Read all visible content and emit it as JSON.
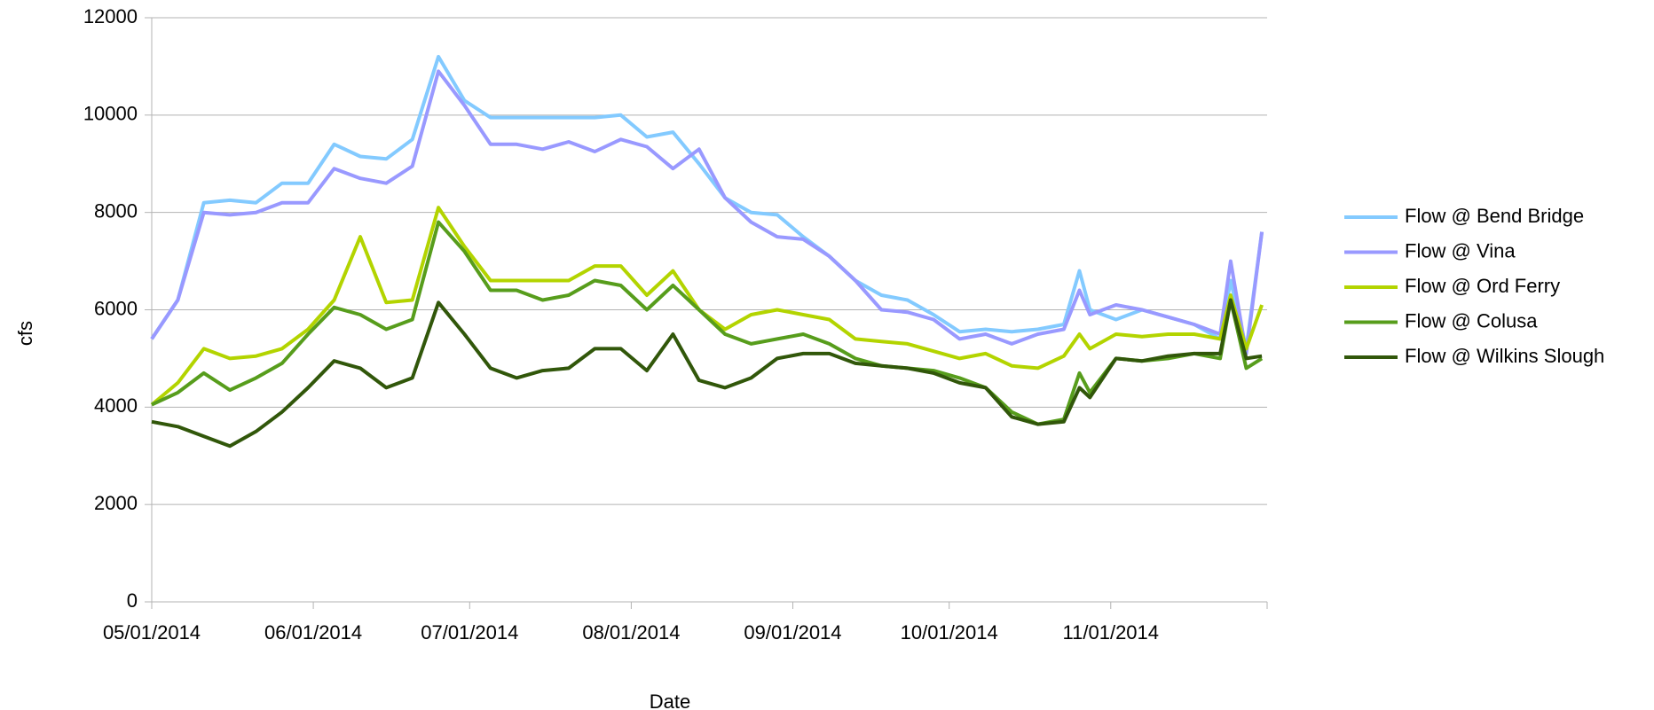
{
  "chart_data": {
    "type": "line",
    "x_label": "Date",
    "y_label": "cfs",
    "x": [
      "2014-05-01",
      "2014-05-06",
      "2014-05-11",
      "2014-05-16",
      "2014-05-21",
      "2014-05-26",
      "2014-05-31",
      "2014-06-05",
      "2014-06-10",
      "2014-06-15",
      "2014-06-20",
      "2014-06-25",
      "2014-06-30",
      "2014-07-05",
      "2014-07-10",
      "2014-07-15",
      "2014-07-20",
      "2014-07-25",
      "2014-07-30",
      "2014-08-04",
      "2014-08-09",
      "2014-08-14",
      "2014-08-19",
      "2014-08-24",
      "2014-08-29",
      "2014-09-03",
      "2014-09-08",
      "2014-09-13",
      "2014-09-18",
      "2014-09-23",
      "2014-09-28",
      "2014-10-03",
      "2014-10-08",
      "2014-10-13",
      "2014-10-18",
      "2014-10-23",
      "2014-10-26",
      "2014-10-28",
      "2014-11-02",
      "2014-11-07",
      "2014-11-12",
      "2014-11-17",
      "2014-11-22",
      "2014-11-24",
      "2014-11-27",
      "2014-11-30"
    ],
    "xlim": [
      "2014-05-01",
      "2014-12-01"
    ],
    "xticks": [
      {
        "value": "2014-05-01",
        "label": "05/01/2014"
      },
      {
        "value": "2014-06-01",
        "label": "06/01/2014"
      },
      {
        "value": "2014-07-01",
        "label": "07/01/2014"
      },
      {
        "value": "2014-08-01",
        "label": "08/01/2014"
      },
      {
        "value": "2014-09-01",
        "label": "09/01/2014"
      },
      {
        "value": "2014-10-01",
        "label": "10/01/2014"
      },
      {
        "value": "2014-11-01",
        "label": "11/01/2014"
      }
    ],
    "ylim": [
      0,
      12000
    ],
    "yticks": [
      0,
      2000,
      4000,
      6000,
      8000,
      10000,
      12000
    ],
    "grid": true,
    "legend": "right",
    "series": [
      {
        "name": "Flow @ Bend Bridge",
        "color": "#83caff",
        "values": [
          5400,
          6200,
          8200,
          8250,
          8200,
          8600,
          8600,
          9400,
          9150,
          9100,
          9500,
          11200,
          10300,
          9950,
          9950,
          9950,
          9950,
          9950,
          10000,
          9550,
          9650,
          9000,
          8300,
          8000,
          7950,
          7500,
          7100,
          6600,
          6300,
          6200,
          5900,
          5550,
          5600,
          5550,
          5600,
          5700,
          6800,
          6000,
          5800,
          6000,
          5850,
          5700,
          5400,
          6600,
          5200,
          7600
        ]
      },
      {
        "name": "Flow @ Vina",
        "color": "#9999ff",
        "values": [
          5400,
          6200,
          8000,
          7950,
          8000,
          8200,
          8200,
          8900,
          8700,
          8600,
          8950,
          10900,
          10200,
          9400,
          9400,
          9300,
          9450,
          9250,
          9500,
          9350,
          8900,
          9300,
          8300,
          7800,
          7500,
          7450,
          7100,
          6600,
          6000,
          5950,
          5800,
          5400,
          5500,
          5300,
          5500,
          5600,
          6400,
          5900,
          6100,
          6000,
          5850,
          5700,
          5500,
          7000,
          5100,
          7600
        ]
      },
      {
        "name": "Flow @ Ord Ferry",
        "color": "#b3d400",
        "values": [
          4050,
          4500,
          5200,
          5000,
          5050,
          5200,
          5600,
          6200,
          7500,
          6150,
          6200,
          8100,
          7300,
          6600,
          6600,
          6600,
          6600,
          6900,
          6900,
          6300,
          6800,
          6000,
          5600,
          5900,
          6000,
          5900,
          5800,
          5400,
          5350,
          5300,
          5150,
          5000,
          5100,
          4850,
          4800,
          5050,
          5500,
          5200,
          5500,
          5450,
          5500,
          5500,
          5400,
          6300,
          5200,
          6100
        ]
      },
      {
        "name": "Flow @ Colusa",
        "color": "#579d1c",
        "values": [
          4050,
          4300,
          4700,
          4350,
          4600,
          4900,
          5500,
          6050,
          5900,
          5600,
          5800,
          7800,
          7200,
          6400,
          6400,
          6200,
          6300,
          6600,
          6500,
          6000,
          6500,
          6000,
          5500,
          5300,
          5400,
          5500,
          5300,
          5000,
          4850,
          4800,
          4750,
          4600,
          4400,
          3900,
          3650,
          3750,
          4700,
          4300,
          5000,
          4950,
          5000,
          5100,
          5000,
          6200,
          4800,
          5000
        ]
      },
      {
        "name": "Flow @ Wilkins Slough",
        "color": "#31570a",
        "values": [
          3700,
          3600,
          3400,
          3200,
          3500,
          3900,
          4400,
          4950,
          4800,
          4400,
          4600,
          6150,
          5500,
          4800,
          4600,
          4750,
          4800,
          5200,
          5200,
          4750,
          5500,
          4550,
          4400,
          4600,
          5000,
          5100,
          5100,
          4900,
          4850,
          4800,
          4700,
          4500,
          4400,
          3800,
          3650,
          3700,
          4400,
          4200,
          5000,
          4950,
          5050,
          5100,
          5100,
          6200,
          5000,
          5050
        ]
      }
    ]
  }
}
